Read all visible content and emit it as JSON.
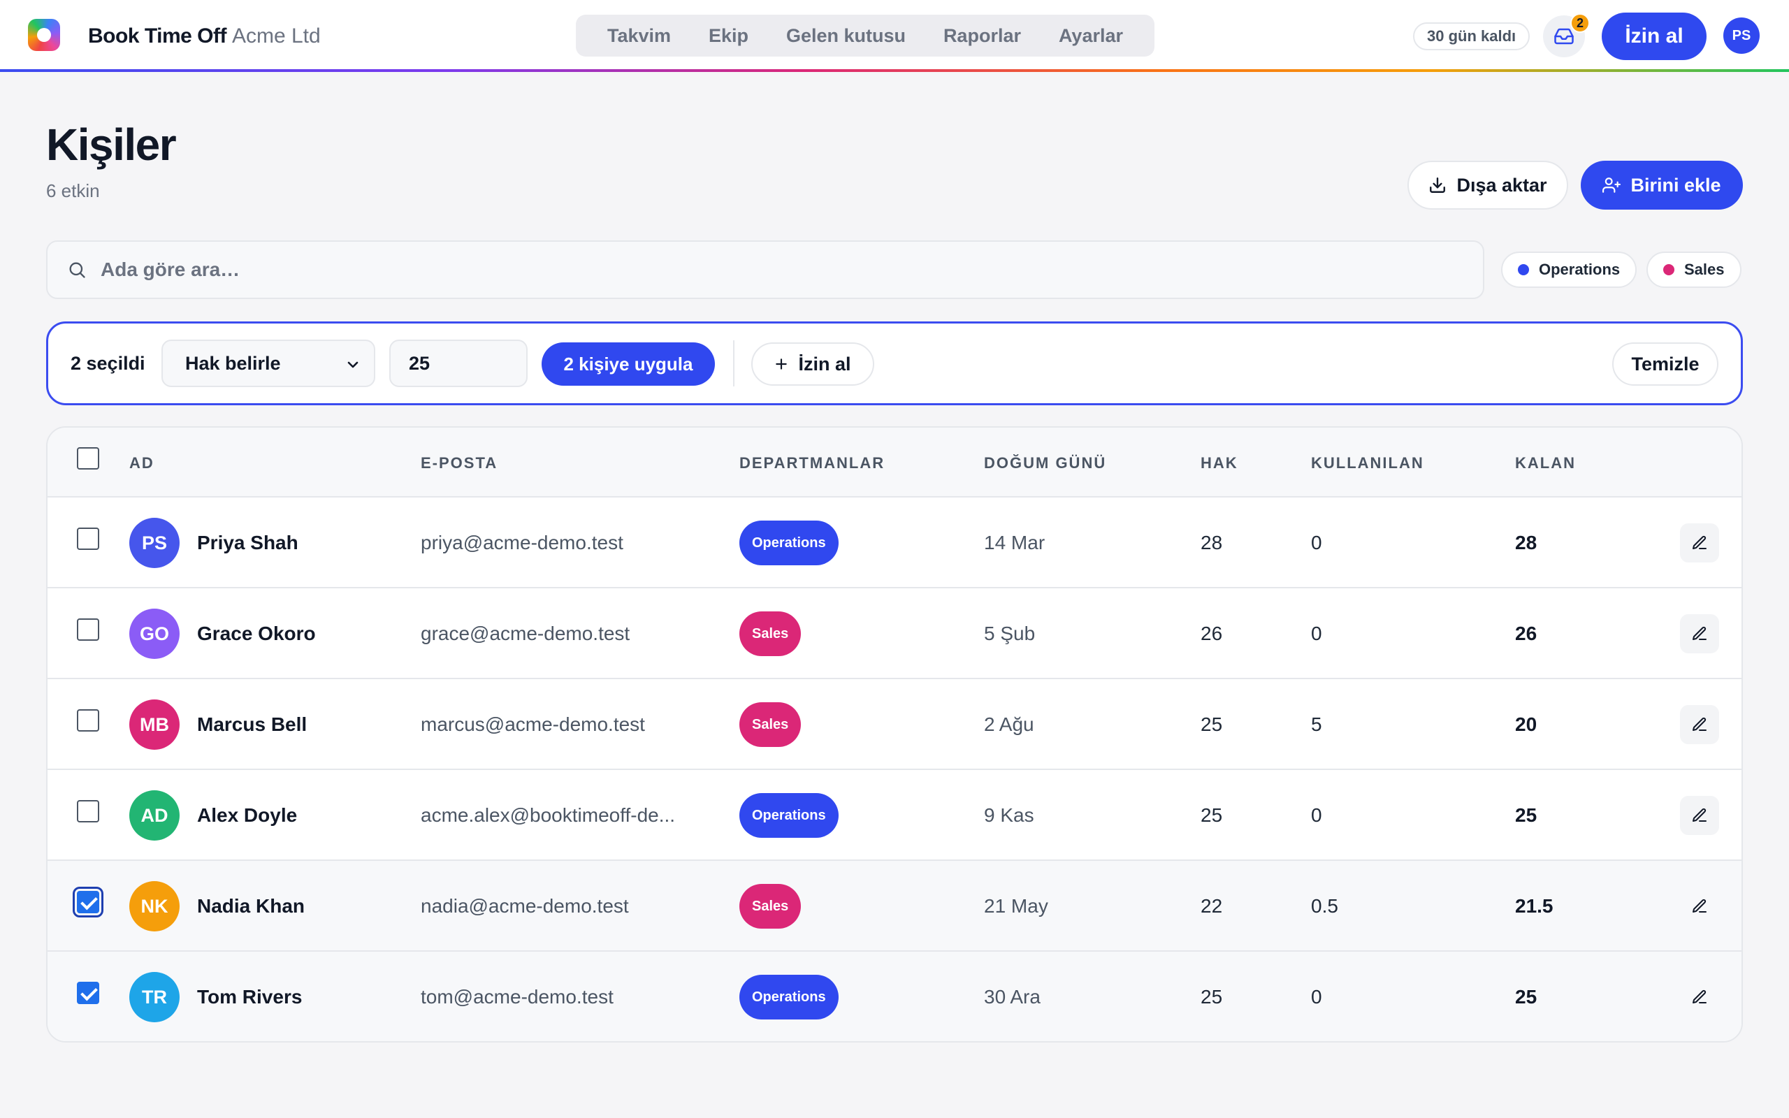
{
  "app": {
    "brand_name": "Book Time Off",
    "org_name": "Acme Ltd",
    "nav": [
      "Takvim",
      "Ekip",
      "Gelen kutusu",
      "Raporlar",
      "Ayarlar"
    ],
    "trial_label": "30 gün kaldı",
    "inbox_count": "2",
    "leave_button": "İzin al",
    "user_initials": "PS"
  },
  "page": {
    "title": "Kişiler",
    "subtitle": "6 etkin",
    "export_label": "Dışa aktar",
    "add_label": "Birini ekle"
  },
  "search": {
    "placeholder": "Ada göre ara…"
  },
  "filters": [
    {
      "label": "Operations",
      "color": "#3048ef"
    },
    {
      "label": "Sales",
      "color": "#db2777"
    }
  ],
  "bulk": {
    "selected_label": "2 seçildi",
    "select_value": "Hak belirle",
    "input_value": "25",
    "apply_label": "2 kişiye uygula",
    "leave_label": "İzin al",
    "clear_label": "Temizle"
  },
  "table": {
    "headers": {
      "name": "AD",
      "email": "E-POSTA",
      "departments": "DEPARTMANLAR",
      "birthday": "DOĞUM GÜNÜ",
      "entitlement": "HAK",
      "used": "KULLANILAN",
      "remaining": "KALAN"
    },
    "rows": [
      {
        "initials": "PS",
        "name": "Priya Shah",
        "email": "priya@acme-demo.test",
        "dept": "Operations",
        "birthday": "14 Mar",
        "hak": "28",
        "used": "0",
        "kalan": "28",
        "avatar_color": "#4656ec",
        "dept_color": "#3048ef",
        "checked": false
      },
      {
        "initials": "GO",
        "name": "Grace Okoro",
        "email": "grace@acme-demo.test",
        "dept": "Sales",
        "birthday": "5 Şub",
        "hak": "26",
        "used": "0",
        "kalan": "26",
        "avatar_color": "#8b5cf6",
        "dept_color": "#db2777",
        "checked": false
      },
      {
        "initials": "MB",
        "name": "Marcus Bell",
        "email": "marcus@acme-demo.test",
        "dept": "Sales",
        "birthday": "2 Ağu",
        "hak": "25",
        "used": "5",
        "kalan": "20",
        "avatar_color": "#db2777",
        "dept_color": "#db2777",
        "checked": false
      },
      {
        "initials": "AD",
        "name": "Alex Doyle",
        "email": "acme.alex@booktimeoff-de...",
        "dept": "Operations",
        "birthday": "9 Kas",
        "hak": "25",
        "used": "0",
        "kalan": "25",
        "avatar_color": "#22b573",
        "dept_color": "#3048ef",
        "checked": false
      },
      {
        "initials": "NK",
        "name": "Nadia Khan",
        "email": "nadia@acme-demo.test",
        "dept": "Sales",
        "birthday": "21 May",
        "hak": "22",
        "used": "0.5",
        "kalan": "21.5",
        "avatar_color": "#f59e0b",
        "dept_color": "#db2777",
        "checked": true
      },
      {
        "initials": "TR",
        "name": "Tom Rivers",
        "email": "tom@acme-demo.test",
        "dept": "Operations",
        "birthday": "30 Ara",
        "hak": "25",
        "used": "0",
        "kalan": "25",
        "avatar_color": "#1ea5e8",
        "dept_color": "#3048ef",
        "checked": true
      }
    ]
  }
}
